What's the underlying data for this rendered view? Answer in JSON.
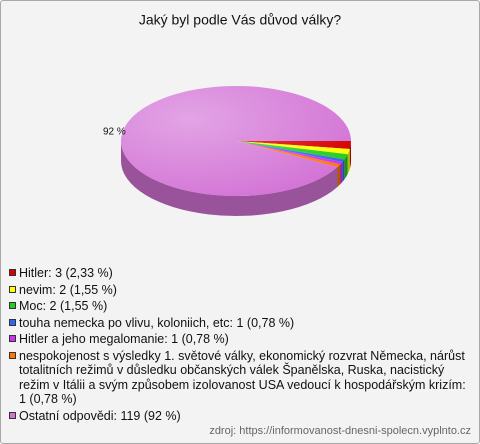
{
  "chart_data": {
    "type": "pie3d",
    "title": "Jaký byl podle Vás důvod války?",
    "categories": [
      "Hitler: 3 (2,33 %)",
      "nevim: 2 (1,55 %)",
      "Moc: 2 (1,55 %)",
      "touha nemecka po vlivu, koloniich, etc: 1 (0,78 %)",
      "Hitler a jeho megalomanie: 1 (0,78 %)",
      "nespokojenost s výsledky 1. světové války, ekonomický rozvrat Německa, nárůst totalitních režimů v důsledku občanských válek Španělska, Ruska, nacistický režim v Itálii a svým způsobem izolovanost USA vedoucí k hospodářským krizím: 1 (0,78 %)",
      "Ostatní odpovědi: 119 (92 %)"
    ],
    "values": [
      2.33,
      1.55,
      1.55,
      0.78,
      0.78,
      0.78,
      92
    ],
    "value_labels": [
      null,
      null,
      null,
      null,
      null,
      null,
      "92 %"
    ],
    "colors": [
      "#d40000",
      "#ffff00",
      "#22cc22",
      "#3366ee",
      "#cc33ee",
      "#ff7700",
      "#d373d6"
    ],
    "source": "zdroj: https://informovanost-dnesni-spolecn.vyplnto.cz"
  }
}
